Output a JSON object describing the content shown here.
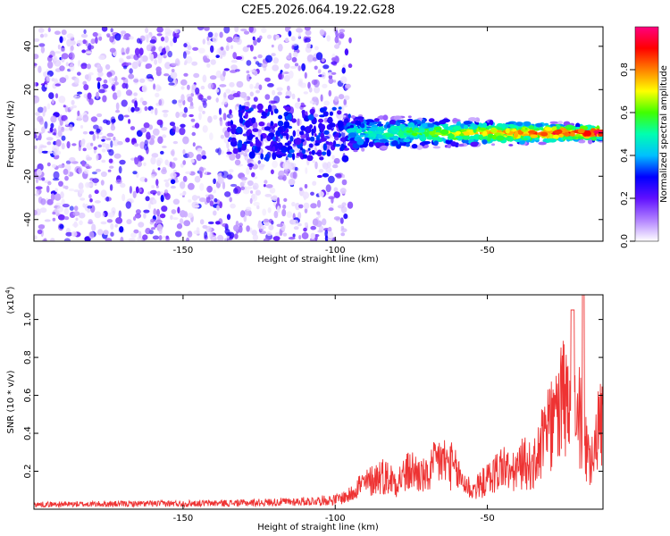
{
  "figure": {
    "title": "C2E5.2026.064.19.22.G28"
  },
  "chart_data": [
    {
      "type": "heatmap",
      "xlabel": "Height of straight line (km)",
      "ylabel": "Frequency (Hz)",
      "xlim": [
        -199,
        -12
      ],
      "ylim": [
        -50,
        49
      ],
      "x_ticks": [
        "-150",
        "-100",
        "-50"
      ],
      "y_ticks": [
        "40",
        "20",
        "0",
        "-20",
        "-40"
      ],
      "colorbar": {
        "label": "Normalized spectral amplitude",
        "range": [
          0,
          1
        ],
        "ticks": [
          "0.0",
          "0.2",
          "0.4",
          "0.6",
          "0.8"
        ],
        "colors": [
          "#ffffff",
          "#b080ff",
          "#6010ff",
          "#0000ff",
          "#00c0ff",
          "#00ffb0",
          "#40ff00",
          "#ffff00",
          "#ff8000",
          "#ff0000",
          "#ff0080"
        ]
      },
      "signal_band": {
        "x": [
          -95,
          -12
        ],
        "center_hz": 0
      },
      "noise_region": {
        "x": [
          -199,
          -95
        ]
      }
    },
    {
      "type": "line",
      "xlabel": "Height of straight line (km)",
      "ylabel": "SNR (10 * v/v)",
      "y_multiplier": "(x10",
      "y_multiplier_exp": "4",
      "multiplier_close": ")",
      "xlim": [
        -199,
        -12
      ],
      "ylim": [
        0,
        1.13
      ],
      "x_ticks": [
        "-150",
        "-100",
        "-50"
      ],
      "y_ticks": [
        "0.2",
        "0.4",
        "0.6",
        "0.8",
        "1.0"
      ],
      "series": [
        {
          "color": "#ee3333",
          "x": [
            -199,
            -160,
            -130,
            -110,
            -100,
            -95,
            -93,
            -90,
            -85,
            -80,
            -75,
            -70,
            -66,
            -62,
            -58,
            -55,
            -52,
            -48,
            -45,
            -42,
            -38,
            -35,
            -32,
            -28,
            -25,
            -22,
            -20,
            -18,
            -16,
            -14,
            -12
          ],
          "y": [
            0.03,
            0.035,
            0.04,
            0.05,
            0.06,
            0.09,
            0.15,
            0.16,
            0.22,
            0.18,
            0.25,
            0.2,
            0.32,
            0.28,
            0.18,
            0.12,
            0.16,
            0.22,
            0.28,
            0.22,
            0.3,
            0.26,
            0.42,
            0.56,
            0.7,
            0.55,
            0.6,
            0.4,
            0.35,
            0.5,
            0.58
          ]
        }
      ]
    }
  ]
}
